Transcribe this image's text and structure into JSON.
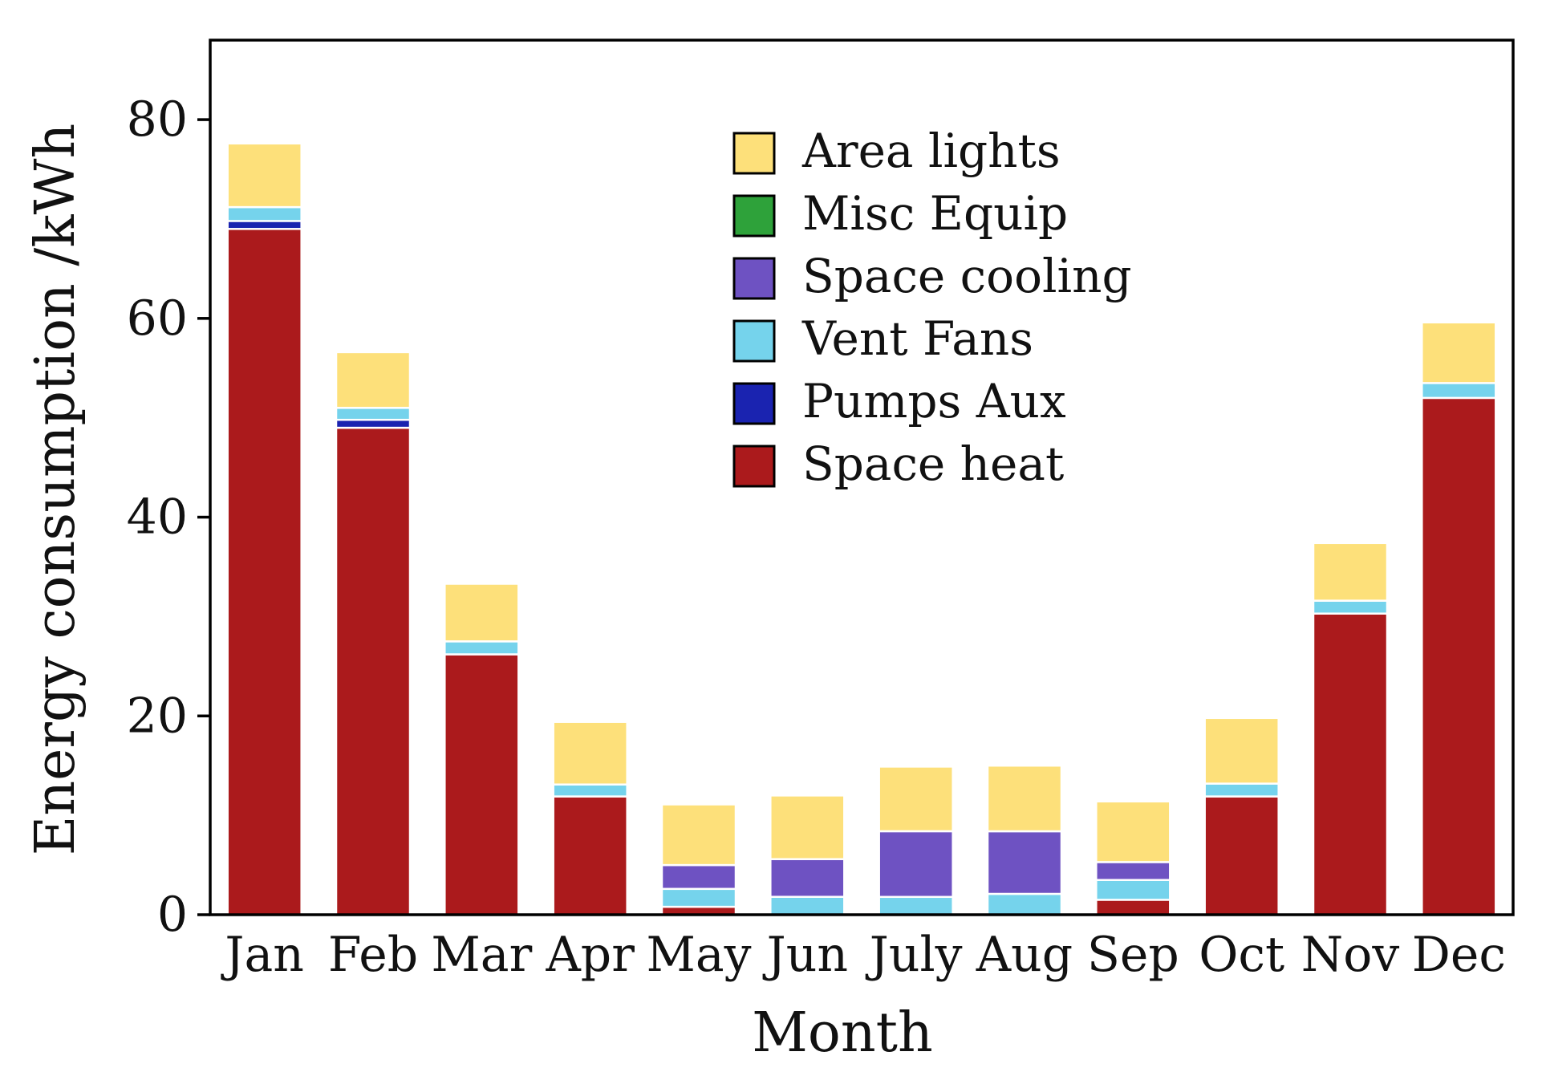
{
  "chart_data": {
    "type": "bar",
    "stacked": true,
    "title": "",
    "xlabel": "Month",
    "ylabel": "Energy consumption /kWh",
    "ylim": [
      0,
      88
    ],
    "yticks": [
      0,
      20,
      40,
      60,
      80
    ],
    "grid": false,
    "legend_position": "top-center",
    "categories": [
      "Jan",
      "Feb",
      "Mar",
      "Apr",
      "May",
      "Jun",
      "July",
      "Aug",
      "Sep",
      "Oct",
      "Nov",
      "Dec"
    ],
    "series": [
      {
        "name": "Space heat",
        "color": "#ab1a1c",
        "values": [
          69.0,
          49.0,
          26.2,
          11.9,
          0.8,
          0.0,
          0.0,
          0.0,
          1.5,
          11.9,
          30.3,
          52.0
        ]
      },
      {
        "name": "Pumps Aux",
        "color": "#1a23b0",
        "values": [
          0.8,
          0.8,
          0.0,
          0.0,
          0.0,
          0.0,
          0.0,
          0.0,
          0.0,
          0.0,
          0.0,
          0.0
        ]
      },
      {
        "name": "Vent Fans",
        "color": "#75d3ec",
        "values": [
          1.4,
          1.2,
          1.3,
          1.2,
          1.8,
          1.8,
          1.8,
          2.1,
          2.0,
          1.3,
          1.3,
          1.5
        ]
      },
      {
        "name": "Space cooling",
        "color": "#6e52c2",
        "values": [
          0.0,
          0.0,
          0.0,
          0.0,
          2.4,
          3.8,
          6.6,
          6.3,
          1.8,
          0.0,
          0.0,
          0.0
        ]
      },
      {
        "name": "Misc Equip",
        "color": "#2ea23a",
        "values": [
          0.0,
          0.0,
          0.0,
          0.0,
          0.0,
          0.0,
          0.0,
          0.0,
          0.0,
          0.0,
          0.0,
          0.0
        ]
      },
      {
        "name": "Area lights",
        "color": "#fde07a",
        "values": [
          6.4,
          5.6,
          5.8,
          6.3,
          6.1,
          6.4,
          6.5,
          6.6,
          6.1,
          6.6,
          5.8,
          6.1
        ]
      }
    ],
    "legend_order": [
      "Area lights",
      "Misc Equip",
      "Space cooling",
      "Vent Fans",
      "Pumps Aux",
      "Space heat"
    ]
  }
}
